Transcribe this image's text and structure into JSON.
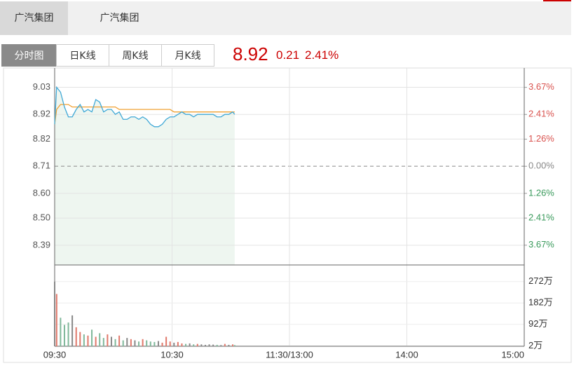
{
  "tabs": [
    "广汽集团",
    "广汽集团"
  ],
  "chart_tabs": [
    "分时图",
    "日K线",
    "周K线",
    "月K线"
  ],
  "quote": {
    "price": "8.92",
    "change": "0.21",
    "change_pct": "2.41%"
  },
  "chart_data": {
    "type": "line",
    "x": [
      0,
      1,
      3,
      5,
      7,
      9,
      11,
      13,
      15,
      17,
      19,
      21,
      23,
      25,
      27,
      29,
      31,
      33,
      35,
      37,
      39,
      41,
      43,
      45,
      47,
      49,
      51,
      53,
      55,
      57,
      59,
      61,
      63,
      65,
      67,
      69,
      71,
      73,
      75,
      77,
      79,
      81,
      83,
      85,
      87,
      89,
      91,
      92
    ],
    "xlim": [
      0,
      240
    ],
    "xticks": [
      {
        "value": 0,
        "label": "09:30"
      },
      {
        "value": 60,
        "label": "10:30"
      },
      {
        "value": 120,
        "label": "11:30/13:00"
      },
      {
        "value": 180,
        "label": "14:00"
      },
      {
        "value": 240,
        "label": "15:00"
      }
    ],
    "price_line": {
      "color": "#3fa8d6",
      "values": [
        8.88,
        9.03,
        9.01,
        8.95,
        8.91,
        8.91,
        8.94,
        8.96,
        8.93,
        8.94,
        8.93,
        8.98,
        8.97,
        8.93,
        8.94,
        8.94,
        8.92,
        8.93,
        8.9,
        8.9,
        8.91,
        8.91,
        8.9,
        8.91,
        8.9,
        8.88,
        8.87,
        8.87,
        8.88,
        8.9,
        8.91,
        8.91,
        8.92,
        8.93,
        8.92,
        8.92,
        8.91,
        8.92,
        8.92,
        8.92,
        8.92,
        8.92,
        8.91,
        8.91,
        8.92,
        8.92,
        8.93,
        8.92
      ]
    },
    "avg_line": {
      "color": "#f0a030",
      "values": [
        8.88,
        8.94,
        8.96,
        8.96,
        8.96,
        8.95,
        8.95,
        8.95,
        8.95,
        8.95,
        8.95,
        8.95,
        8.95,
        8.95,
        8.95,
        8.95,
        8.95,
        8.94,
        8.94,
        8.94,
        8.94,
        8.94,
        8.94,
        8.94,
        8.94,
        8.94,
        8.94,
        8.94,
        8.94,
        8.94,
        8.94,
        8.93,
        8.93,
        8.93,
        8.93,
        8.93,
        8.93,
        8.93,
        8.93,
        8.93,
        8.93,
        8.93,
        8.93,
        8.93,
        8.93,
        8.93,
        8.93,
        8.93
      ]
    },
    "ylim": [
      8.31,
      9.108
    ],
    "yticks": [
      9.03,
      8.92,
      8.82,
      8.71,
      {
        "value": 8.6,
        "label": "8.60"
      },
      {
        "value": 8.5,
        "label": "8.50"
      },
      8.39
    ],
    "y2lim": [
      -4.59,
      4.57
    ],
    "y2ticks": [
      {
        "value": 3.67,
        "label": "3.67%"
      },
      {
        "value": 2.41,
        "label": "2.41%"
      },
      {
        "value": 1.26,
        "label": "1.26%"
      },
      {
        "value": 0,
        "label": "0.00%"
      },
      {
        "value": -1.26,
        "label": "1.26%"
      },
      {
        "value": -2.41,
        "label": "2.41%"
      },
      {
        "value": -3.67,
        "label": "3.67%"
      }
    ],
    "base": 8.71,
    "grid": true,
    "up_color": "#e0786a",
    "down_color": "#7fb89a",
    "flat_color": "#888888",
    "volume": {
      "values": [
        2720000,
        2200000,
        1200000,
        900000,
        1000000,
        1300000,
        800000,
        600000,
        500000,
        450000,
        700000,
        400000,
        550000,
        350000,
        500000,
        400000,
        300000,
        450000,
        250000,
        350000,
        300000,
        250000,
        200000,
        300000,
        250000,
        200000,
        180000,
        220000,
        150000,
        400000,
        200000,
        150000,
        180000,
        120000,
        100000,
        120000,
        80000,
        100000,
        80000,
        60000,
        80000,
        70000,
        60000,
        50000,
        100000,
        60000,
        80000,
        50000
      ],
      "ylim": [
        0,
        3420000
      ],
      "yticks": [
        {
          "value": 2720000,
          "label": "272万"
        },
        {
          "value": 1820000,
          "label": "182万"
        },
        {
          "value": 920000,
          "label": "92万"
        },
        {
          "value": 20000,
          "label": "2万"
        }
      ]
    }
  }
}
